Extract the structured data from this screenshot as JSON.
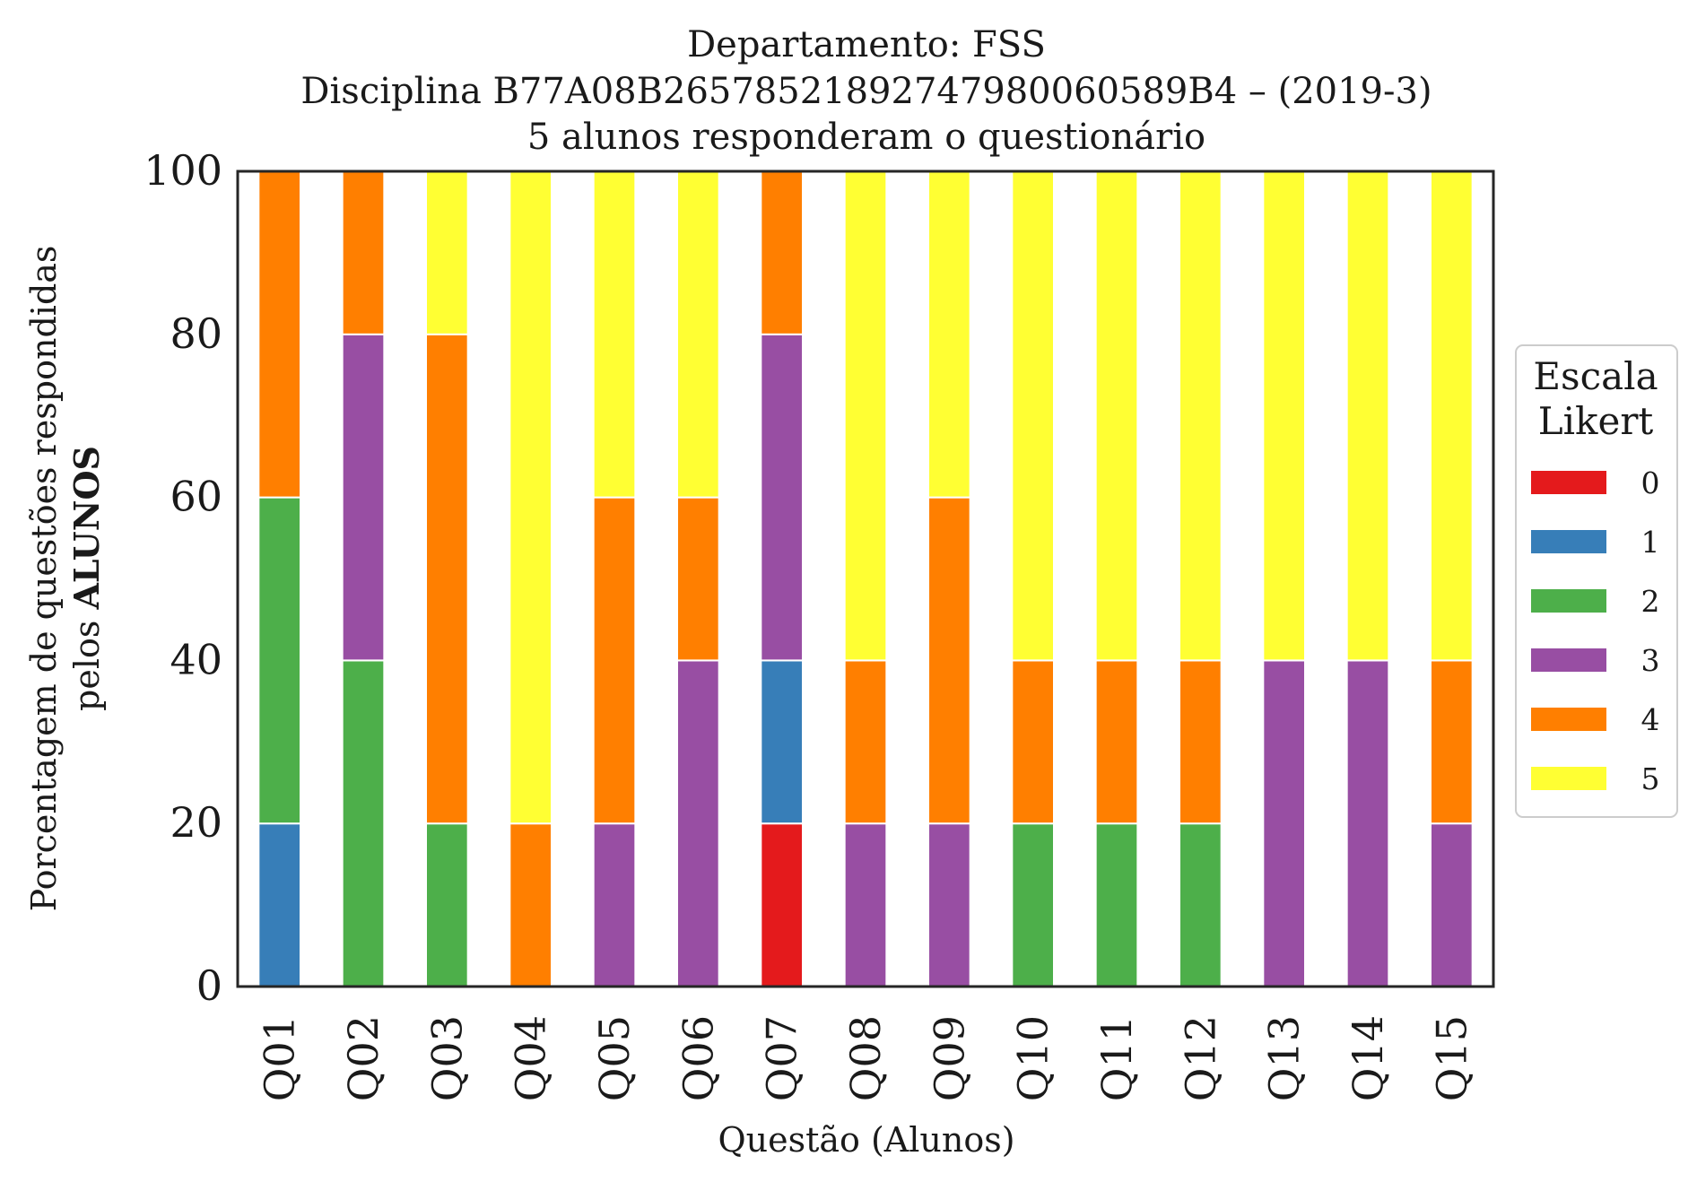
{
  "chart_data": {
    "type": "bar",
    "stacked": true,
    "title": [
      "Departamento: FSS",
      "Disciplina B77A08B2657852189274798006058 9B4 – (2019-3)",
      "5 alunos responderam o questionário"
    ],
    "xlabel": "Questão (Alunos)",
    "ylabel_line1": "Porcentagem de questões respondidas",
    "ylabel_line2_prefix": "pelos ",
    "ylabel_line2_bold": "ALUNOS",
    "ylim": [
      0,
      100
    ],
    "yticks": [
      "0",
      "20",
      "40",
      "60",
      "80",
      "100"
    ],
    "categories": [
      "Q01",
      "Q02",
      "Q03",
      "Q04",
      "Q05",
      "Q06",
      "Q07",
      "Q08",
      "Q09",
      "Q10",
      "Q11",
      "Q12",
      "Q13",
      "Q14",
      "Q15"
    ],
    "legend": {
      "title_line1": "Escala",
      "title_line2": "Likert",
      "placement": "right"
    },
    "series": [
      {
        "name": "0",
        "color": "#e41a1c",
        "values": [
          0,
          0,
          0,
          0,
          0,
          0,
          20,
          0,
          0,
          0,
          0,
          0,
          0,
          0,
          0
        ]
      },
      {
        "name": "1",
        "color": "#377eb8",
        "values": [
          20,
          0,
          0,
          0,
          0,
          0,
          20,
          0,
          0,
          0,
          0,
          0,
          0,
          0,
          0
        ]
      },
      {
        "name": "2",
        "color": "#4daf4a",
        "values": [
          40,
          40,
          20,
          0,
          0,
          0,
          0,
          0,
          0,
          20,
          20,
          20,
          0,
          0,
          0
        ]
      },
      {
        "name": "3",
        "color": "#984ea3",
        "values": [
          0,
          40,
          0,
          0,
          20,
          40,
          40,
          20,
          20,
          0,
          0,
          0,
          40,
          40,
          20
        ]
      },
      {
        "name": "4",
        "color": "#ff7f00",
        "values": [
          40,
          20,
          60,
          20,
          40,
          20,
          20,
          20,
          40,
          20,
          20,
          20,
          0,
          0,
          20
        ]
      },
      {
        "name": "5",
        "color": "#ffff33",
        "values": [
          0,
          0,
          20,
          80,
          40,
          40,
          0,
          60,
          40,
          60,
          60,
          60,
          60,
          60,
          60
        ]
      }
    ]
  }
}
